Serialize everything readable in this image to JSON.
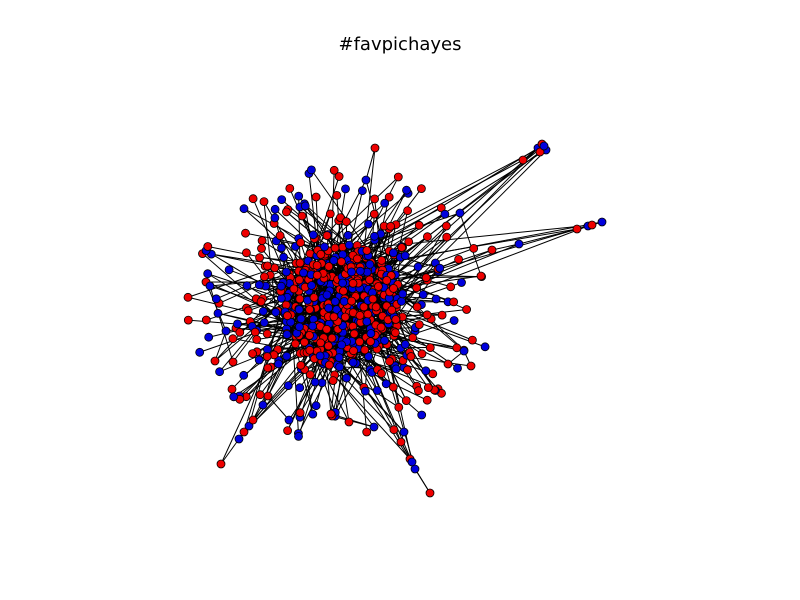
{
  "figure": {
    "title": "#favpichayes"
  },
  "graph": {
    "node_colors": {
      "red": "#ee0000",
      "blue": "#0000dd"
    },
    "edge_color": "#000000",
    "node_outline": "#000000",
    "background": "#ffffff"
  }
}
